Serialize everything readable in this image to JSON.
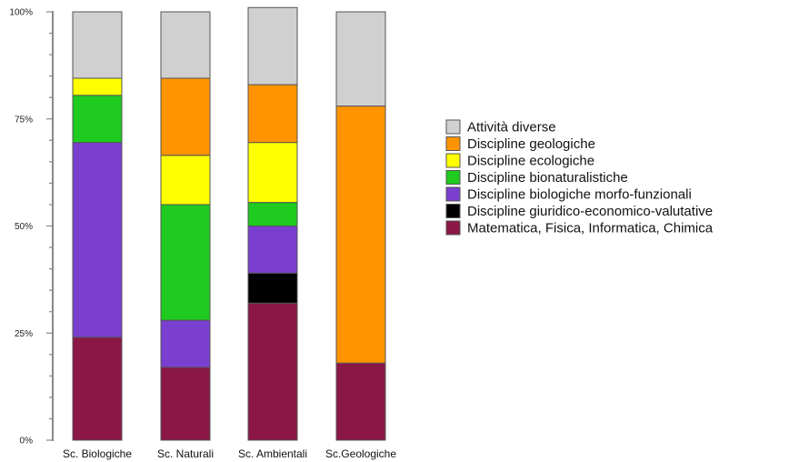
{
  "chart_data": {
    "type": "bar",
    "stacked": true,
    "percent": true,
    "categories": [
      "Sc. Biologiche",
      "Sc. Naturali",
      "Sc. Ambientali",
      "Sc.Geologiche"
    ],
    "y_ticks": [
      "0%",
      "25%",
      "50%",
      "75%",
      "100%"
    ],
    "ylim": [
      0,
      100
    ],
    "grid": false,
    "legend_position": "right",
    "series": [
      {
        "name": "Matematica, Fisica, Informatica, Chimica",
        "color": "#8a1746",
        "values": [
          24,
          17,
          32,
          18
        ]
      },
      {
        "name": "Discipline giuridico-economico-valutative",
        "color": "#000000",
        "values": [
          0,
          0,
          7,
          0
        ]
      },
      {
        "name": "Discipline biologiche morfo-funzionali",
        "color": "#7b3fd0",
        "values": [
          45.5,
          11,
          11,
          0
        ]
      },
      {
        "name": "Discipline bionaturalistiche",
        "color": "#1ecb1e",
        "values": [
          11,
          27,
          5.5,
          0
        ]
      },
      {
        "name": "Discipline ecologiche",
        "color": "#ffff00",
        "values": [
          4,
          11.5,
          14,
          0
        ]
      },
      {
        "name": "Discipline geologiche",
        "color": "#ff9400",
        "values": [
          0,
          18,
          13.5,
          60
        ]
      },
      {
        "name": "Attività diverse",
        "color": "#d0d0d0",
        "values": [
          15.5,
          15.5,
          18,
          22
        ]
      }
    ]
  }
}
